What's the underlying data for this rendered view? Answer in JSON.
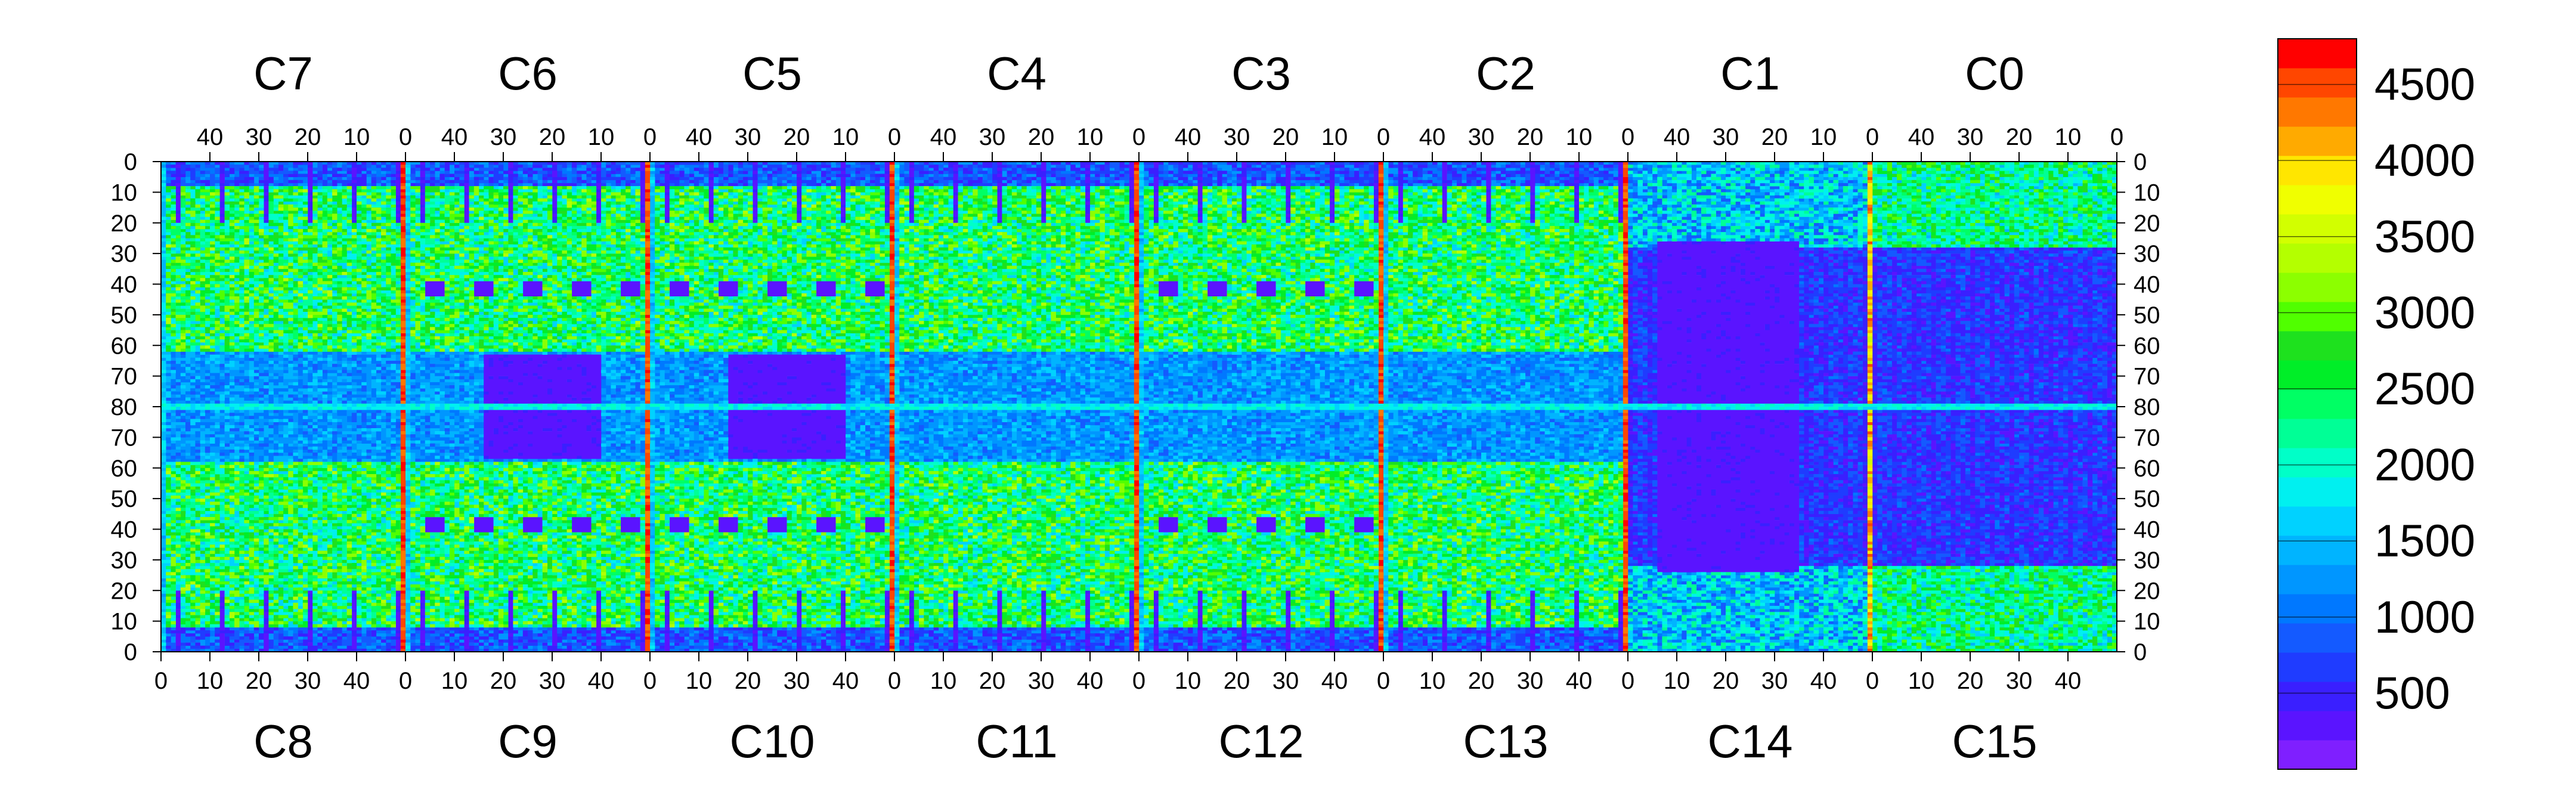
{
  "chart_data": {
    "type": "heatmap",
    "title": "",
    "top_panel_labels": [
      "C7",
      "C6",
      "C5",
      "C4",
      "C3",
      "C2",
      "C1",
      "C0"
    ],
    "bottom_panel_labels": [
      "C8",
      "C9",
      "C10",
      "C11",
      "C12",
      "C13",
      "C14",
      "C15"
    ],
    "top_x_tick_labels": [
      "40",
      "30",
      "20",
      "10",
      "0"
    ],
    "bottom_x_tick_labels": [
      "0",
      "10",
      "20",
      "30",
      "40"
    ],
    "panel_column_range": [
      0,
      50
    ],
    "y_tick_labels": [
      "0",
      "10",
      "20",
      "30",
      "40",
      "50",
      "60",
      "70",
      "80",
      "70",
      "60",
      "50",
      "40",
      "30",
      "20",
      "10",
      "0"
    ],
    "rows_per_half": 80,
    "colorbar": {
      "range": [
        0,
        4800
      ],
      "ticks": [
        500,
        1000,
        1500,
        2000,
        2500,
        3000,
        3500,
        4000,
        4500
      ],
      "tick_labels": [
        "500",
        "1000",
        "1500",
        "2000",
        "2500",
        "3000",
        "3500",
        "4000",
        "4500"
      ]
    },
    "colormap": [
      "#7f1fff",
      "#5a14ff",
      "#3a1fff",
      "#1f3cff",
      "#145aff",
      "#0078ff",
      "#0096ff",
      "#00b4ff",
      "#00d2ff",
      "#00f0f0",
      "#00ffc8",
      "#00ff96",
      "#00ff64",
      "#00ee28",
      "#1ee11e",
      "#50ff00",
      "#8cff00",
      "#b4ff00",
      "#d2ff00",
      "#f0ff00",
      "#ffe600",
      "#ffaa00",
      "#ff7800",
      "#ff4600",
      "#ff0000"
    ],
    "bright_column_chips": [
      5,
      4,
      3,
      2,
      1,
      0
    ]
  }
}
